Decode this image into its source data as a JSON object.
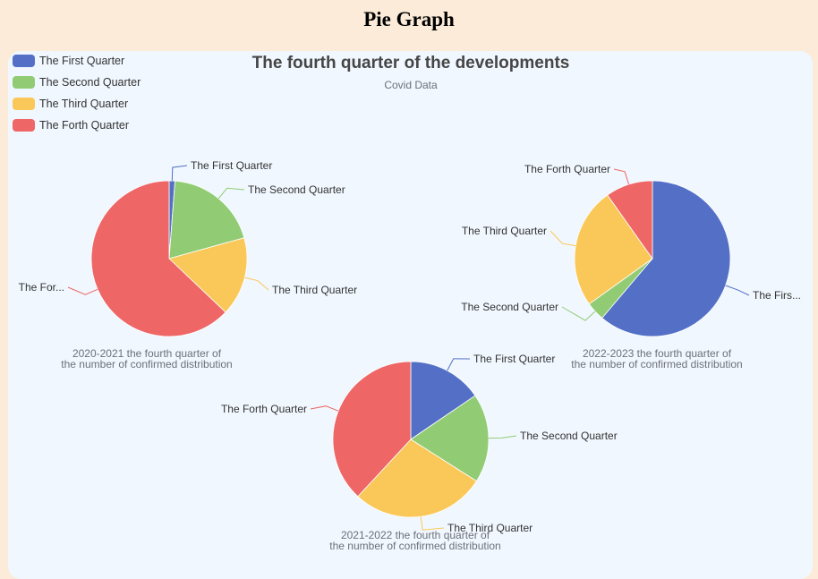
{
  "page": {
    "heading": "Pie Graph"
  },
  "chart_data": {
    "type": "pie",
    "title": "The fourth quarter of  the developments",
    "subtitle": "Covid Data",
    "legend": {
      "placement": "top-left",
      "entries": [
        "The First Quarter",
        "The Second Quarter",
        "The Third Quarter",
        "The Forth Quarter"
      ]
    },
    "colors": [
      "#5470c6",
      "#91cc75",
      "#fac858",
      "#ee6666"
    ],
    "pies": [
      {
        "name_lines": [
          "2020-2021 the fourth quarter of",
          "the number of confirmed distribution"
        ],
        "slices": [
          {
            "name": "The First Quarter",
            "label": "The First Quarter",
            "value": 1.2
          },
          {
            "name": "The Second Quarter",
            "label": "The Second Quarter",
            "value": 19.5
          },
          {
            "name": "The Third Quarter",
            "label": "The Third Quarter",
            "value": 16.4
          },
          {
            "name": "The Forth Quarter",
            "label": "The For...",
            "value": 62.9
          }
        ]
      },
      {
        "name_lines": [
          "2022-2023 the fourth quarter of",
          "the number of confirmed distribution"
        ],
        "slices": [
          {
            "name": "The First Quarter",
            "label": "The Firs...",
            "value": 61.2
          },
          {
            "name": "The Second Quarter",
            "label": "The Second Quarter",
            "value": 3.9
          },
          {
            "name": "The Third Quarter",
            "label": "The Third Quarter",
            "value": 25.1
          },
          {
            "name": "The Forth Quarter",
            "label": "The Forth Quarter",
            "value": 9.8
          }
        ]
      },
      {
        "name_lines": [
          "2021-2022 the fourth quarter of",
          "the number of confirmed distribution"
        ],
        "slices": [
          {
            "name": "The First Quarter",
            "label": "The First Quarter",
            "value": 15.5
          },
          {
            "name": "The Second Quarter",
            "label": "The Second Quarter",
            "value": 18.5
          },
          {
            "name": "The Third Quarter",
            "label": "The Third Quarter",
            "value": 27.9
          },
          {
            "name": "The Forth Quarter",
            "label": "The Forth Quarter",
            "value": 38.1
          }
        ]
      }
    ]
  }
}
